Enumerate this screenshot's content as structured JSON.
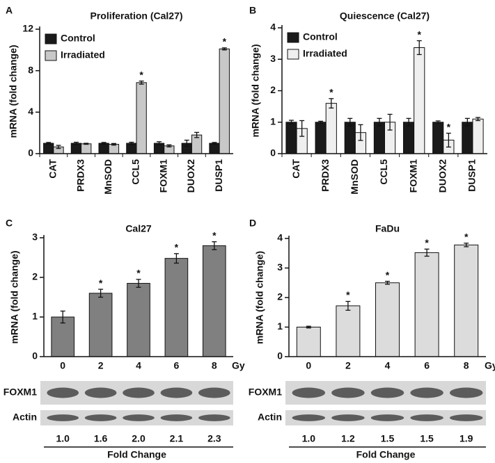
{
  "chart_data": [
    {
      "type": "bar",
      "panel": "A",
      "title": "Proliferation (Cal27)",
      "y_label": "mRNA (fold change)",
      "categories": [
        "CAT",
        "PRDX3",
        "MnSOD",
        "CCL5",
        "FOXM1",
        "DUOX2",
        "DUSP1"
      ],
      "series": [
        {
          "name": "Control",
          "color": "#1a1a1a",
          "values": [
            1.0,
            1.0,
            1.0,
            1.0,
            1.0,
            1.0,
            1.0
          ],
          "errors": [
            0.08,
            0.1,
            0.08,
            0.1,
            0.15,
            0.3,
            0.08
          ]
        },
        {
          "name": "Irradiated",
          "color": "#c8c8c8",
          "values": [
            0.65,
            0.95,
            0.9,
            6.85,
            0.75,
            1.8,
            10.1
          ],
          "errors": [
            0.15,
            0.05,
            0.08,
            0.15,
            0.1,
            0.25,
            0.1
          ],
          "significance": [
            null,
            null,
            null,
            "*",
            null,
            null,
            "*"
          ]
        }
      ],
      "ylim": [
        0,
        12
      ],
      "yticks": [
        0,
        4,
        8,
        12
      ]
    },
    {
      "type": "bar",
      "panel": "B",
      "title": "Quiescence (Cal27)",
      "y_label": "mRNA (fold change)",
      "categories": [
        "CAT",
        "PRDX3",
        "MnSOD",
        "CCL5",
        "FOXM1",
        "DUOX2",
        "DUSP1"
      ],
      "series": [
        {
          "name": "Control",
          "color": "#1a1a1a",
          "values": [
            1.0,
            1.0,
            1.0,
            1.0,
            1.0,
            1.0,
            1.0
          ],
          "errors": [
            0.06,
            0.03,
            0.12,
            0.12,
            0.12,
            0.04,
            0.12
          ]
        },
        {
          "name": "Irradiated",
          "color": "#efefef",
          "values": [
            0.8,
            1.6,
            0.67,
            1.0,
            3.37,
            0.43,
            1.1
          ],
          "errors": [
            0.25,
            0.15,
            0.25,
            0.25,
            0.22,
            0.22,
            0.05
          ],
          "significance": [
            null,
            "*",
            null,
            null,
            "*",
            "*",
            null
          ]
        }
      ],
      "ylim": [
        0,
        4
      ],
      "yticks": [
        0,
        1,
        2,
        3,
        4
      ]
    },
    {
      "type": "bar",
      "panel": "C",
      "title": "Cal27",
      "y_label": "mRNA (fold change)",
      "categories": [
        "0",
        "2",
        "4",
        "6",
        "8"
      ],
      "x_unit": "Gy",
      "values": [
        1.0,
        1.6,
        1.85,
        2.48,
        2.8
      ],
      "errors": [
        0.15,
        0.1,
        0.1,
        0.12,
        0.1
      ],
      "color": "#808080",
      "significance": [
        null,
        "*",
        "*",
        "*",
        "*"
      ],
      "ylim": [
        0,
        3
      ],
      "yticks": [
        0,
        1,
        2,
        3
      ],
      "blot": {
        "rows": [
          "FOXM1",
          "Actin"
        ],
        "fold_change": [
          "1.0",
          "1.6",
          "2.0",
          "2.1",
          "2.3"
        ],
        "fold_change_label": "Fold Change"
      }
    },
    {
      "type": "bar",
      "panel": "D",
      "title": "FaDu",
      "y_label": "mRNA (fold change)",
      "categories": [
        "0",
        "2",
        "4",
        "6",
        "8"
      ],
      "x_unit": "Gy",
      "values": [
        1.0,
        1.72,
        2.5,
        3.52,
        3.78
      ],
      "errors": [
        0.03,
        0.15,
        0.05,
        0.12,
        0.06
      ],
      "color": "#dcdcdc",
      "significance": [
        null,
        "*",
        "*",
        "*",
        "*"
      ],
      "ylim": [
        0,
        4
      ],
      "yticks": [
        0,
        1,
        2,
        3,
        4
      ],
      "blot": {
        "rows": [
          "FOXM1",
          "Actin"
        ],
        "fold_change": [
          "1.0",
          "1.2",
          "1.5",
          "1.5",
          "1.9"
        ],
        "fold_change_label": "Fold Change"
      }
    }
  ]
}
